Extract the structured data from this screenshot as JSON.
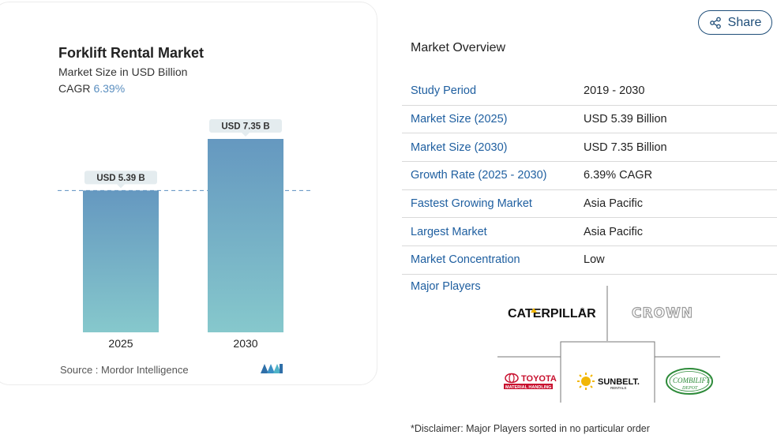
{
  "chart_card": {
    "title": "Forklift Rental Market",
    "subtitle": "Market Size in USD Billion",
    "cagr_label": "CAGR",
    "cagr_value": "6.39%",
    "source": "Source :  Mordor Intelligence"
  },
  "chart_data": {
    "type": "bar",
    "categories": [
      "2025",
      "2030"
    ],
    "values": [
      5.39,
      7.35
    ],
    "data_labels": [
      "USD 5.39 B",
      "USD 7.35 B"
    ],
    "title": "Forklift Rental Market",
    "subtitle": "Market Size in USD Billion",
    "reference_line": 5.39,
    "reference_line_style": "dashed",
    "grid": false,
    "colors": {
      "bar_top": "#6598c0",
      "bar_bottom": "#86c8cc",
      "label_bg": "#e4ecef",
      "dashed_line": "#5b8fc0"
    }
  },
  "share_button": {
    "label": "Share",
    "icon": "share-icon"
  },
  "overview": {
    "title": "Market Overview",
    "rows": [
      {
        "label": "Study Period",
        "value": "2019 - 2030"
      },
      {
        "label": "Market Size (2025)",
        "value": "USD 5.39 Billion"
      },
      {
        "label": "Market Size (2030)",
        "value": "USD 7.35 Billion"
      },
      {
        "label": "Growth Rate (2025 - 2030)",
        "value": "6.39% CAGR"
      },
      {
        "label": "Fastest Growing Market",
        "value": "Asia Pacific"
      },
      {
        "label": "Largest Market",
        "value": "Asia Pacific"
      },
      {
        "label": "Market Concentration",
        "value": "Low"
      }
    ]
  },
  "major_players": {
    "label": "Major Players",
    "logos": [
      {
        "name": "CATERPILLAR",
        "mark": "®"
      },
      {
        "name": "CROWN"
      },
      {
        "name": "TOYOTA",
        "tagline": "MATERIAL HANDLING"
      },
      {
        "name": "SUNBELT.",
        "tagline": "RENTALS"
      },
      {
        "name": "COMBILIFT",
        "tagline": "DEPOT"
      }
    ]
  },
  "disclaimer": "*Disclaimer: Major Players sorted in no particular order",
  "colors": {
    "accent_blue": "#1f5fa0",
    "share_border": "#1f4e79"
  }
}
